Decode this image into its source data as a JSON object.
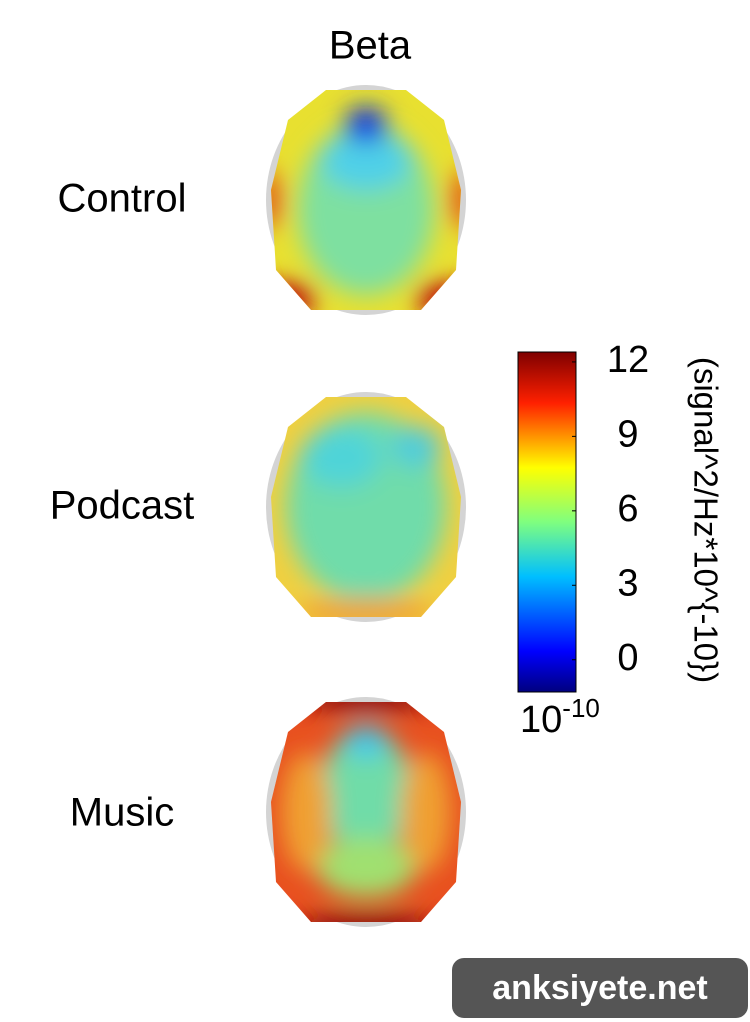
{
  "title": "Beta",
  "rows": [
    {
      "label": "Control"
    },
    {
      "label": "Podcast"
    },
    {
      "label": "Music"
    }
  ],
  "colorbar": {
    "lim": [
      -1.3,
      12.4
    ],
    "ticks": [
      0,
      3,
      6,
      9,
      12
    ],
    "multiplier": {
      "base": "10",
      "exponent": "-10"
    },
    "label": "(signal^2/Hz*10^{-10})"
  },
  "watermark": "anksiyete.net"
}
